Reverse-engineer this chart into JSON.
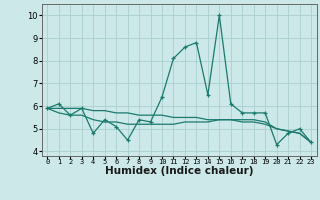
{
  "xlabel": "Humidex (Indice chaleur)",
  "x": [
    0,
    1,
    2,
    3,
    4,
    5,
    6,
    7,
    8,
    9,
    10,
    11,
    12,
    13,
    14,
    15,
    16,
    17,
    18,
    19,
    20,
    21,
    22,
    23
  ],
  "line1": [
    5.9,
    6.1,
    5.6,
    5.9,
    4.8,
    5.4,
    5.1,
    4.5,
    5.4,
    5.3,
    6.4,
    8.1,
    8.6,
    8.8,
    6.5,
    10.0,
    6.1,
    5.7,
    5.7,
    5.7,
    4.3,
    4.8,
    5.0,
    4.4
  ],
  "line2": [
    5.9,
    5.7,
    5.6,
    5.6,
    5.4,
    5.3,
    5.3,
    5.2,
    5.2,
    5.2,
    5.2,
    5.2,
    5.3,
    5.3,
    5.3,
    5.4,
    5.4,
    5.4,
    5.4,
    5.3,
    5.0,
    4.9,
    4.8,
    4.4
  ],
  "line3": [
    5.9,
    5.9,
    5.9,
    5.9,
    5.8,
    5.8,
    5.7,
    5.7,
    5.6,
    5.6,
    5.6,
    5.5,
    5.5,
    5.5,
    5.4,
    5.4,
    5.4,
    5.3,
    5.3,
    5.2,
    5.0,
    4.9,
    4.8,
    4.4
  ],
  "color": "#1a7a6e",
  "bg_color": "#cce8e8",
  "grid_color": "#aacece",
  "ylim": [
    3.8,
    10.5
  ],
  "yticks": [
    4,
    5,
    6,
    7,
    8,
    9,
    10
  ],
  "xlim": [
    -0.5,
    23.5
  ],
  "xtick_fontsize": 5.0,
  "ytick_fontsize": 6.0,
  "xlabel_fontsize": 7.5
}
